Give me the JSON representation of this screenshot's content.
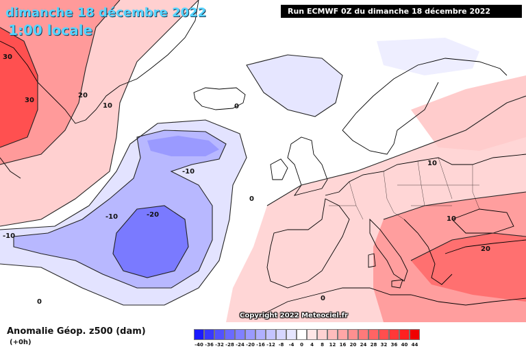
{
  "header": {
    "date": "dimanche 18 décembre 2022",
    "time": "1:00 locale",
    "run": "Run ECMWF 0Z du dimanche 18 décembre 2022"
  },
  "footer": {
    "title": "Anomalie Géop. z500 (dam)",
    "subtitle": "(+0h)",
    "copyright": "Copyright 2022 Meteociel.fr"
  },
  "legend": {
    "ticks": [
      "-40",
      "-36",
      "-32",
      "-28",
      "-24",
      "-20",
      "-16",
      "-12",
      "-8",
      "-4",
      "0",
      "4",
      "8",
      "12",
      "16",
      "20",
      "24",
      "28",
      "32",
      "36",
      "40",
      "44"
    ],
    "colors": [
      "#1a1aff",
      "#3838ff",
      "#5252ff",
      "#6a6aff",
      "#8080ff",
      "#9a9aff",
      "#b0b0ff",
      "#c4c4ff",
      "#d6d6ff",
      "#e6e6ff",
      "#ffffff",
      "#ffe6e6",
      "#ffd2d2",
      "#ffbcbc",
      "#ffa6a6",
      "#ff9090",
      "#ff7a7a",
      "#ff6464",
      "#ff4e4e",
      "#ff3838",
      "#ff2020",
      "#f00000"
    ]
  },
  "contour_labels": {
    "g30a": "30",
    "g30b": "30",
    "g20": "20",
    "g10": "10",
    "iceland0": "0",
    "atl_m10a": "-10",
    "atl_m10b": "-10",
    "atl_m10c": "-10",
    "atl_m20": "-20",
    "atl0": "0",
    "sw0": "0",
    "ceu10": "10",
    "balk10": "10",
    "tur20": "20",
    "afr0": "0"
  }
}
